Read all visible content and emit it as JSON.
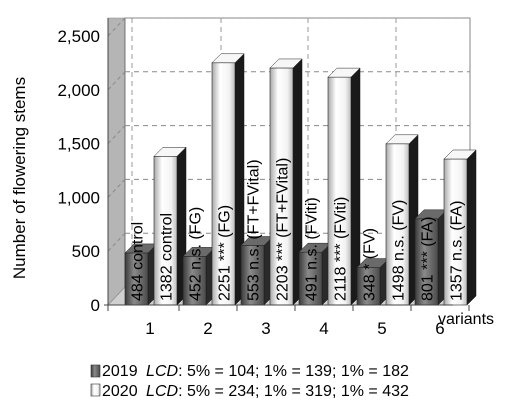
{
  "chart_data": {
    "type": "bar",
    "ylabel": "Number of flowering stems",
    "xlabel": "variants",
    "ylim": [
      0,
      2500
    ],
    "yticks": [
      "0",
      "500",
      "1,000",
      "1,500",
      "2,000",
      "2,500"
    ],
    "categories": [
      "1",
      "2",
      "3",
      "4",
      "5",
      "6"
    ],
    "series": [
      {
        "name": "2019",
        "values": [
          484,
          452,
          553,
          491,
          348,
          801
        ],
        "labels": [
          "484 control",
          "452 n.s. (FG)",
          "553 n.s. (FT+FVital)",
          "491 n.s. (FViti)",
          "348 * (FV)",
          "801 *** (FA)"
        ],
        "color": "#555555"
      },
      {
        "name": "2020",
        "values": [
          1382,
          2251,
          2203,
          2118,
          1498,
          1357
        ],
        "labels": [
          "1382 control",
          "2251 *** (FG)",
          "2203 *** (FT+FVital)",
          "2118 *** (FViti)",
          "1498 n.s. (FV)",
          "1357 n.s. (FA)"
        ],
        "color": "#eeeeee"
      }
    ],
    "grid": true,
    "legend": {
      "position": "bottom",
      "entries": [
        {
          "year": "2019",
          "lcd_label": "LCD",
          "lcd_values": ": 5% = 104; 1% = 139; 1% = 182"
        },
        {
          "year": "2020",
          "lcd_label": "LCD",
          "lcd_values": ": 5% = 234; 1% = 319; 1% = 432"
        }
      ]
    }
  }
}
